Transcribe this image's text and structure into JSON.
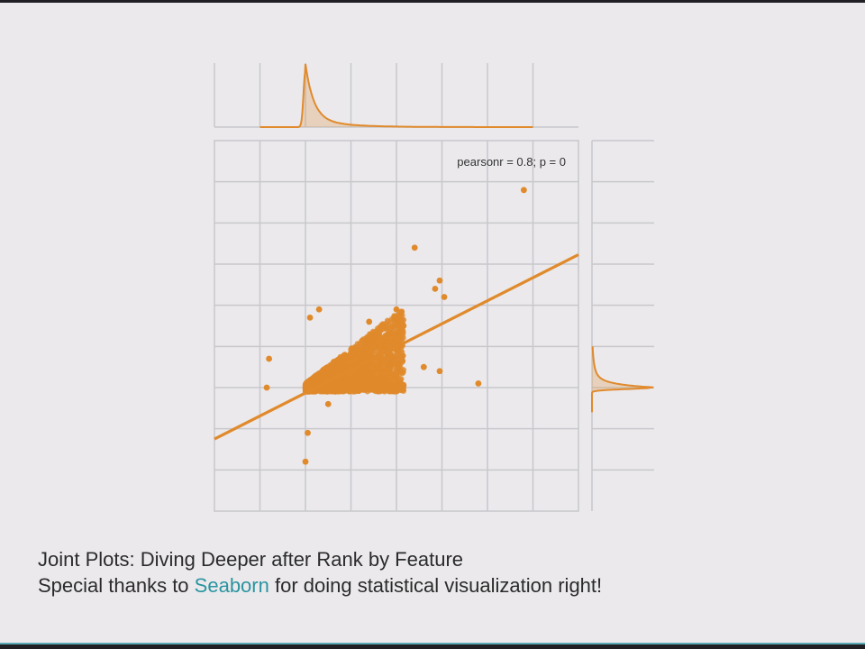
{
  "colors": {
    "background": "#ebe9ec",
    "frame": "#1f1f24",
    "accent_line": "#5aa9b6",
    "grid": "#c8c8cb",
    "series": "#e08a2c",
    "link": "#2a95a0"
  },
  "caption": {
    "line1": "Joint Plots: Diving Deeper after Rank by Feature",
    "line2_prefix": "Special thanks to ",
    "line2_link": "Seaborn",
    "line2_suffix": " for doing statistical visualization right!"
  },
  "chart_data": {
    "type": "scatter",
    "title": "",
    "xlabel": "",
    "ylabel": "",
    "grid": true,
    "annotation": "pearsonr = 0.8; p = 0",
    "pearson_r": 0.8,
    "p_value": 0,
    "xlim": [
      0,
      8
    ],
    "ylim": [
      0,
      9
    ],
    "regression": {
      "slope": 0.56,
      "intercept": 1.75
    },
    "cluster": {
      "x_range": [
        2.0,
        5.0
      ],
      "y_range": [
        2.9,
        5.0
      ],
      "dense_band_y": 2.95,
      "count": 3000
    },
    "outliers": [
      [
        6.8,
        7.8
      ],
      [
        4.4,
        6.4
      ],
      [
        2.3,
        4.9
      ],
      [
        4.85,
        5.4
      ],
      [
        4.95,
        5.6
      ],
      [
        5.05,
        5.2
      ],
      [
        4.6,
        3.5
      ],
      [
        4.95,
        3.4
      ],
      [
        5.8,
        3.1
      ],
      [
        1.2,
        3.7
      ],
      [
        1.15,
        3.0
      ],
      [
        2.5,
        2.6
      ],
      [
        2.05,
        1.9
      ],
      [
        2.0,
        1.2
      ],
      [
        3.4,
        4.6
      ],
      [
        4.0,
        4.9
      ],
      [
        2.1,
        4.7
      ]
    ],
    "marginal_x": {
      "peak_x": 2.0,
      "range": [
        1.0,
        7.0
      ]
    },
    "marginal_y": {
      "peak_y": 3.0,
      "range": [
        2.4,
        4.0
      ]
    }
  }
}
